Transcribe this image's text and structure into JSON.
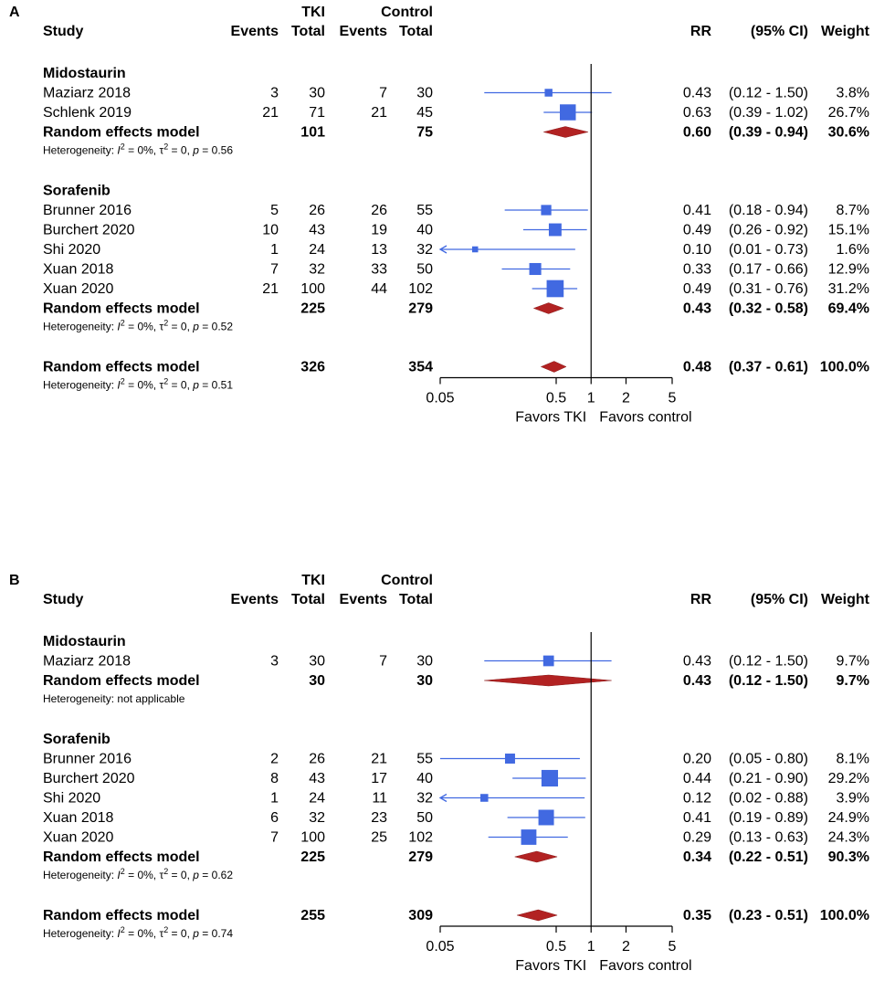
{
  "chart_data": [
    {
      "type": "forest",
      "panel_label": "A",
      "header": {
        "group1": "TKI",
        "group2": "Control",
        "study": "Study",
        "events": "Events",
        "total": "Total",
        "events2": "Events",
        "total2": "Total",
        "rr": "RR",
        "ci": "(95% CI)",
        "weight": "Weight"
      },
      "subgroups": [
        {
          "name": "Midostaurin",
          "studies": [
            {
              "study": "Maziarz 2018",
              "e1": "3",
              "n1": "30",
              "e2": "7",
              "n2": "30",
              "rr": 0.43,
              "lo": 0.12,
              "hi": 1.5,
              "rr_text": "0.43",
              "ci_text": "(0.12 - 1.50)",
              "weight_text": "3.8%",
              "weight": 3.8
            },
            {
              "study": "Schlenk 2019",
              "e1": "21",
              "n1": "71",
              "e2": "21",
              "n2": "45",
              "rr": 0.63,
              "lo": 0.39,
              "hi": 1.02,
              "rr_text": "0.63",
              "ci_text": "(0.39 - 1.02)",
              "weight_text": "26.7%",
              "weight": 26.7
            }
          ],
          "pooled": {
            "label": "Random effects model",
            "n1": "101",
            "n2": "75",
            "rr": 0.6,
            "lo": 0.39,
            "hi": 0.94,
            "rr_text": "0.60",
            "ci_text": "(0.39 - 0.94)",
            "weight_text": "30.6%"
          },
          "heterogeneity": {
            "prefix": "Heterogeneity: ",
            "i2": "0%",
            "tau2": "0",
            "p": "0.56",
            "na_text": ""
          }
        },
        {
          "name": "Sorafenib",
          "studies": [
            {
              "study": "Brunner 2016",
              "e1": "5",
              "n1": "26",
              "e2": "26",
              "n2": "55",
              "rr": 0.41,
              "lo": 0.18,
              "hi": 0.94,
              "rr_text": "0.41",
              "ci_text": "(0.18 - 0.94)",
              "weight_text": "8.7%",
              "weight": 8.7
            },
            {
              "study": "Burchert 2020",
              "e1": "10",
              "n1": "43",
              "e2": "19",
              "n2": "40",
              "rr": 0.49,
              "lo": 0.26,
              "hi": 0.92,
              "rr_text": "0.49",
              "ci_text": "(0.26 - 0.92)",
              "weight_text": "15.1%",
              "weight": 15.1
            },
            {
              "study": "Shi 2020",
              "e1": "1",
              "n1": "24",
              "e2": "13",
              "n2": "32",
              "rr": 0.1,
              "lo": 0.01,
              "hi": 0.73,
              "rr_text": "0.10",
              "ci_text": "(0.01 - 0.73)",
              "weight_text": "1.6%",
              "weight": 1.6
            },
            {
              "study": "Xuan 2018",
              "e1": "7",
              "n1": "32",
              "e2": "33",
              "n2": "50",
              "rr": 0.33,
              "lo": 0.17,
              "hi": 0.66,
              "rr_text": "0.33",
              "ci_text": "(0.17 - 0.66)",
              "weight_text": "12.9%",
              "weight": 12.9
            },
            {
              "study": "Xuan 2020",
              "e1": "21",
              "n1": "100",
              "e2": "44",
              "n2": "102",
              "rr": 0.49,
              "lo": 0.31,
              "hi": 0.76,
              "rr_text": "0.49",
              "ci_text": "(0.31 - 0.76)",
              "weight_text": "31.2%",
              "weight": 31.2
            }
          ],
          "pooled": {
            "label": "Random effects model",
            "n1": "225",
            "n2": "279",
            "rr": 0.43,
            "lo": 0.32,
            "hi": 0.58,
            "rr_text": "0.43",
            "ci_text": "(0.32 - 0.58)",
            "weight_text": "69.4%"
          },
          "heterogeneity": {
            "prefix": "Heterogeneity: ",
            "i2": "0%",
            "tau2": "0",
            "p": "0.52",
            "na_text": ""
          }
        }
      ],
      "overall": {
        "label": "Random effects model",
        "n1": "326",
        "n2": "354",
        "rr": 0.48,
        "lo": 0.37,
        "hi": 0.61,
        "rr_text": "0.48",
        "ci_text": "(0.37 - 0.61)",
        "weight_text": "100.0%",
        "heterogeneity": {
          "prefix": "Heterogeneity: ",
          "i2": "0%",
          "tau2": "0",
          "p": "0.51",
          "na_text": ""
        }
      },
      "x_axis": {
        "scale": "log",
        "ticks": [
          0.05,
          0.5,
          1,
          2,
          5
        ],
        "tick_labels": [
          "0.05",
          "0.5",
          "1",
          "2",
          "5"
        ],
        "range": [
          0.05,
          5
        ],
        "reference": 1
      },
      "favors": {
        "left": "Favors TKI",
        "right": "Favors control"
      }
    },
    {
      "type": "forest",
      "panel_label": "B",
      "header": {
        "group1": "TKI",
        "group2": "Control",
        "study": "Study",
        "events": "Events",
        "total": "Total",
        "events2": "Events",
        "total2": "Total",
        "rr": "RR",
        "ci": "(95% CI)",
        "weight": "Weight"
      },
      "subgroups": [
        {
          "name": "Midostaurin",
          "studies": [
            {
              "study": "Maziarz 2018",
              "e1": "3",
              "n1": "30",
              "e2": "7",
              "n2": "30",
              "rr": 0.43,
              "lo": 0.12,
              "hi": 1.5,
              "rr_text": "0.43",
              "ci_text": "(0.12 - 1.50)",
              "weight_text": "9.7%",
              "weight": 9.7
            }
          ],
          "pooled": {
            "label": "Random effects model",
            "n1": "30",
            "n2": "30",
            "rr": 0.43,
            "lo": 0.12,
            "hi": 1.5,
            "rr_text": "0.43",
            "ci_text": "(0.12 - 1.50)",
            "weight_text": "9.7%"
          },
          "heterogeneity": {
            "prefix": "Heterogeneity: ",
            "i2": "",
            "tau2": "",
            "p": "",
            "na_text": "not applicable"
          }
        },
        {
          "name": "Sorafenib",
          "studies": [
            {
              "study": "Brunner 2016",
              "e1": "2",
              "n1": "26",
              "e2": "21",
              "n2": "55",
              "rr": 0.2,
              "lo": 0.05,
              "hi": 0.8,
              "rr_text": "0.20",
              "ci_text": "(0.05 - 0.80)",
              "weight_text": "8.1%",
              "weight": 8.1
            },
            {
              "study": "Burchert 2020",
              "e1": "8",
              "n1": "43",
              "e2": "17",
              "n2": "40",
              "rr": 0.44,
              "lo": 0.21,
              "hi": 0.9,
              "rr_text": "0.44",
              "ci_text": "(0.21 - 0.90)",
              "weight_text": "29.2%",
              "weight": 29.2
            },
            {
              "study": "Shi 2020",
              "e1": "1",
              "n1": "24",
              "e2": "11",
              "n2": "32",
              "rr": 0.12,
              "lo": 0.02,
              "hi": 0.88,
              "rr_text": "0.12",
              "ci_text": "(0.02 - 0.88)",
              "weight_text": "3.9%",
              "weight": 3.9
            },
            {
              "study": "Xuan 2018",
              "e1": "6",
              "n1": "32",
              "e2": "23",
              "n2": "50",
              "rr": 0.41,
              "lo": 0.19,
              "hi": 0.89,
              "rr_text": "0.41",
              "ci_text": "(0.19 - 0.89)",
              "weight_text": "24.9%",
              "weight": 24.9
            },
            {
              "study": "Xuan 2020",
              "e1": "7",
              "n1": "100",
              "e2": "25",
              "n2": "102",
              "rr": 0.29,
              "lo": 0.13,
              "hi": 0.63,
              "rr_text": "0.29",
              "ci_text": "(0.13 - 0.63)",
              "weight_text": "24.3%",
              "weight": 24.3
            }
          ],
          "pooled": {
            "label": "Random effects model",
            "n1": "225",
            "n2": "279",
            "rr": 0.34,
            "lo": 0.22,
            "hi": 0.51,
            "rr_text": "0.34",
            "ci_text": "(0.22 - 0.51)",
            "weight_text": "90.3%"
          },
          "heterogeneity": {
            "prefix": "Heterogeneity: ",
            "i2": "0%",
            "tau2": "0",
            "p": "0.62",
            "na_text": ""
          }
        }
      ],
      "overall": {
        "label": "Random effects model",
        "n1": "255",
        "n2": "309",
        "rr": 0.35,
        "lo": 0.23,
        "hi": 0.51,
        "rr_text": "0.35",
        "ci_text": "(0.23 - 0.51)",
        "weight_text": "100.0%",
        "heterogeneity": {
          "prefix": "Heterogeneity: ",
          "i2": "0%",
          "tau2": "0",
          "p": "0.74",
          "na_text": ""
        }
      },
      "x_axis": {
        "scale": "log",
        "ticks": [
          0.05,
          0.5,
          1,
          2,
          5
        ],
        "tick_labels": [
          "0.05",
          "0.5",
          "1",
          "2",
          "5"
        ],
        "range": [
          0.05,
          5
        ],
        "reference": 1
      },
      "favors": {
        "left": "Favors TKI",
        "right": "Favors control"
      }
    }
  ],
  "colors": {
    "square": "#4169e1",
    "diamond": "#b22222",
    "line": "#000000"
  }
}
